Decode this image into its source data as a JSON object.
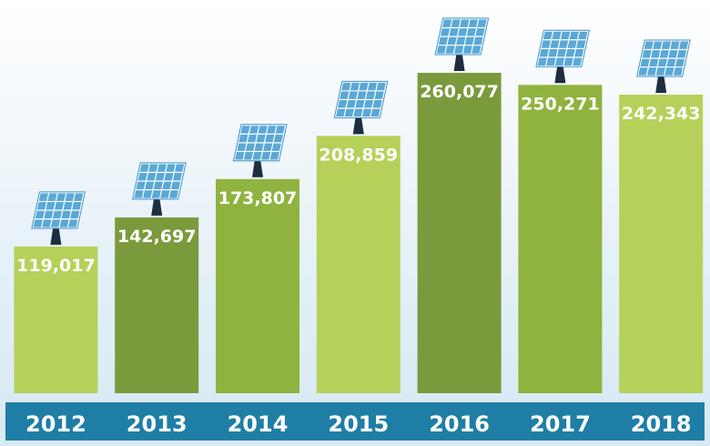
{
  "chart_data": {
    "type": "bar",
    "categories": [
      "2012",
      "2013",
      "2014",
      "2015",
      "2016",
      "2017",
      "2018"
    ],
    "values": [
      119017,
      142697,
      173807,
      208859,
      260077,
      250271,
      242343
    ],
    "value_labels": [
      "119,017",
      "142,697",
      "173,807",
      "208,859",
      "260,077",
      "250,271",
      "242,343"
    ],
    "title": "",
    "xlabel": "",
    "ylabel": "",
    "ylim": [
      0,
      260077
    ],
    "grid": false,
    "legend": "none",
    "bar_colors": [
      "#b5d159",
      "#7b9a3c",
      "#8fb33e",
      "#b5d159",
      "#7b9a3c",
      "#8fb33e",
      "#b5d159"
    ],
    "axis_band_color": "#1f7ea6",
    "panel_color": "#5aa8d6",
    "icon": "solar-panel-icon"
  }
}
